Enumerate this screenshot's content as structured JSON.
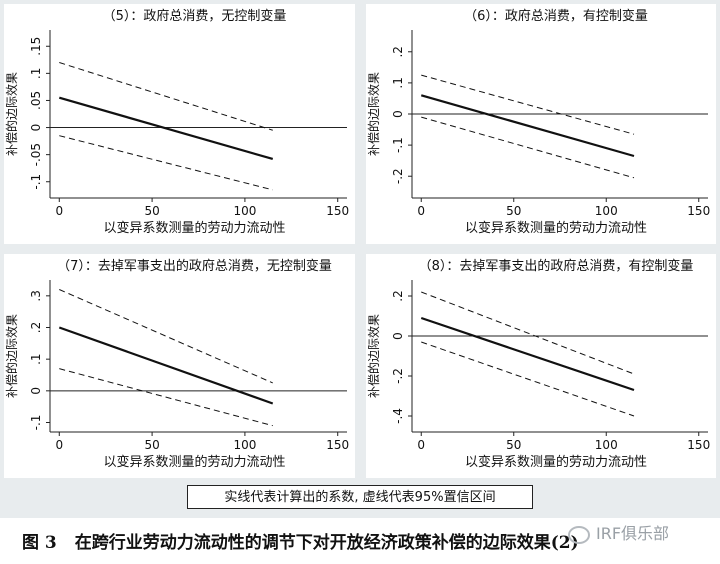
{
  "figure": {
    "caption_number": "图 3",
    "caption_text": "在跨行业劳动力流动性的调节下对开放经济政策补偿的边际效果(2)",
    "legend_note": "实线代表计算出的系数, 虚线代表95%置信区间",
    "watermark": "IRF俱乐部"
  },
  "chart_data": [
    {
      "type": "line",
      "title": "（5）：政府总消费，无控制变量",
      "xlabel": "以变异系数测量的劳动力流动性",
      "ylabel": "补偿的边际效果",
      "xlim": [
        -5,
        155
      ],
      "ylim": [
        -0.13,
        0.18
      ],
      "xticks": [
        0,
        50,
        100,
        150
      ],
      "yticks": [
        -0.1,
        -0.05,
        0,
        0.05,
        0.1,
        0.15
      ],
      "ytick_labels": [
        "-.1",
        "-.05",
        "0",
        ".05",
        ".1",
        ".15"
      ],
      "reference_line": 0,
      "x": [
        0,
        115
      ],
      "series": [
        {
          "style": "solid",
          "values": [
            0.055,
            -0.058
          ]
        },
        {
          "style": "dashed",
          "values": [
            0.12,
            -0.005
          ]
        },
        {
          "style": "dashed",
          "values": [
            -0.015,
            -0.115
          ]
        }
      ],
      "grid": false
    },
    {
      "type": "line",
      "title": "（6）：政府总消费，有控制变量",
      "xlabel": "以变异系数测量的劳动力流动性",
      "ylabel": "补偿的边际效果",
      "xlim": [
        -5,
        155
      ],
      "ylim": [
        -0.27,
        0.27
      ],
      "xticks": [
        0,
        50,
        100,
        150
      ],
      "yticks": [
        -0.2,
        -0.1,
        0,
        0.1,
        0.2
      ],
      "ytick_labels": [
        "-.2",
        "-.1",
        "0",
        ".1",
        ".2"
      ],
      "reference_line": 0,
      "x": [
        0,
        115
      ],
      "series": [
        {
          "style": "solid",
          "values": [
            0.06,
            -0.135
          ]
        },
        {
          "style": "dashed",
          "values": [
            0.125,
            -0.065
          ]
        },
        {
          "style": "dashed",
          "values": [
            -0.01,
            -0.205
          ]
        }
      ],
      "grid": false
    },
    {
      "type": "line",
      "title": "（7）：去掉军事支出的政府总消费，无控制变量",
      "xlabel": "以变异系数测量的劳动力流动性",
      "ylabel": "补偿的边际效果",
      "xlim": [
        -5,
        155
      ],
      "ylim": [
        -0.13,
        0.35
      ],
      "xticks": [
        0,
        50,
        100,
        150
      ],
      "yticks": [
        -0.1,
        0,
        0.1,
        0.2,
        0.3
      ],
      "ytick_labels": [
        "-.1",
        "0",
        ".1",
        ".2",
        ".3"
      ],
      "reference_line": 0,
      "x": [
        0,
        115
      ],
      "series": [
        {
          "style": "solid",
          "values": [
            0.2,
            -0.04
          ]
        },
        {
          "style": "dashed",
          "values": [
            0.32,
            0.025
          ]
        },
        {
          "style": "dashed",
          "values": [
            0.07,
            -0.11
          ]
        }
      ],
      "grid": false
    },
    {
      "type": "line",
      "title": "（8）：去掉军事支出的政府总消费，有控制变量",
      "xlabel": "以变异系数测量的劳动力流动性",
      "ylabel": "补偿的边际效果",
      "xlim": [
        -5,
        155
      ],
      "ylim": [
        -0.48,
        0.28
      ],
      "xticks": [
        0,
        50,
        100,
        150
      ],
      "yticks": [
        -0.4,
        -0.2,
        0,
        0.2
      ],
      "ytick_labels": [
        "-.4",
        "-.2",
        "0",
        ".2"
      ],
      "reference_line": 0,
      "x": [
        0,
        115
      ],
      "series": [
        {
          "style": "solid",
          "values": [
            0.09,
            -0.27
          ]
        },
        {
          "style": "dashed",
          "values": [
            0.22,
            -0.19
          ]
        },
        {
          "style": "dashed",
          "values": [
            -0.03,
            -0.4
          ]
        }
      ],
      "grid": false
    }
  ]
}
